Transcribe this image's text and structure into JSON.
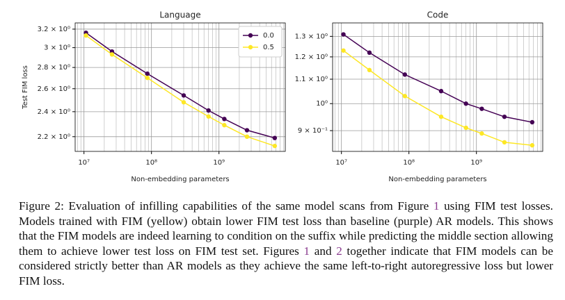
{
  "chart_data": [
    {
      "type": "line",
      "title": "Language",
      "xlabel": "Non-embedding parameters",
      "ylabel": "Test FIM loss",
      "xscale": "log",
      "yscale": "log",
      "grid": true,
      "legend": "upper right",
      "x": [
        10700000,
        26000000,
        87000000,
        300000000,
        700000000,
        1200000000,
        2600000000,
        6700000000
      ],
      "series": [
        {
          "name": "0.0",
          "color": "#440154",
          "values": [
            3.16,
            2.96,
            2.74,
            2.54,
            2.41,
            2.34,
            2.25,
            2.19
          ]
        },
        {
          "name": "0.5",
          "color": "#fde725",
          "values": [
            3.13,
            2.93,
            2.7,
            2.48,
            2.36,
            2.29,
            2.2,
            2.13
          ]
        }
      ],
      "xlim": [
        7400000,
        9600000000
      ],
      "ylim": [
        2.09,
        3.27
      ],
      "xticks": [
        {
          "value": 10000000,
          "label": "10⁷"
        },
        {
          "value": 100000000,
          "label": "10⁸"
        },
        {
          "value": 1000000000,
          "label": "10⁹"
        }
      ],
      "minor_xticks": [
        8000000,
        9000000,
        20000000,
        30000000,
        40000000,
        50000000,
        60000000,
        70000000,
        80000000,
        90000000,
        200000000,
        300000000,
        400000000,
        500000000,
        600000000,
        700000000,
        800000000,
        900000000,
        2000000000,
        3000000000,
        4000000000,
        5000000000,
        6000000000,
        7000000000,
        8000000000,
        9000000000
      ],
      "yticks": [
        {
          "value": 2.2,
          "label": "2.2 × 10⁰"
        },
        {
          "value": 2.4,
          "label": "2.4 × 10⁰"
        },
        {
          "value": 2.6,
          "label": "2.6 × 10⁰"
        },
        {
          "value": 2.8,
          "label": "2.8 × 10⁰"
        },
        {
          "value": 3,
          "label": "3 × 10⁰"
        },
        {
          "value": 3.2,
          "label": "3.2 × 10⁰"
        }
      ]
    },
    {
      "type": "line",
      "title": "Code",
      "xlabel": "Non-embedding parameters",
      "xscale": "log",
      "yscale": "log",
      "grid": true,
      "x": [
        10700000,
        26000000,
        87000000,
        300000000,
        700000000,
        1200000000,
        2600000000,
        6700000000
      ],
      "series": [
        {
          "name": "0.0",
          "color": "#440154",
          "values": [
            1.31,
            1.22,
            1.12,
            1.05,
            1.0,
            0.98,
            0.95,
            0.93
          ]
        },
        {
          "name": "0.5",
          "color": "#fde725",
          "values": [
            1.23,
            1.14,
            1.03,
            0.95,
            0.91,
            0.89,
            0.86,
            0.85
          ]
        }
      ],
      "xlim": [
        7400000,
        9600000000
      ],
      "ylim": [
        0.83,
        1.37
      ],
      "xticks": [
        {
          "value": 10000000,
          "label": "10⁷"
        },
        {
          "value": 100000000,
          "label": "10⁸"
        },
        {
          "value": 1000000000,
          "label": "10⁹"
        }
      ],
      "minor_xticks": [
        8000000,
        9000000,
        20000000,
        30000000,
        40000000,
        50000000,
        60000000,
        70000000,
        80000000,
        90000000,
        200000000,
        300000000,
        400000000,
        500000000,
        600000000,
        700000000,
        800000000,
        900000000,
        2000000000,
        3000000000,
        4000000000,
        5000000000,
        6000000000,
        7000000000,
        8000000000,
        9000000000
      ],
      "yticks": [
        {
          "value": 0.9,
          "label": "9 × 10⁻¹"
        },
        {
          "value": 1,
          "label": "10⁰"
        },
        {
          "value": 1.1,
          "label": "1.1 × 10⁰"
        },
        {
          "value": 1.2,
          "label": "1.2 × 10⁰"
        },
        {
          "value": 1.3,
          "label": "1.3 × 10⁰"
        }
      ]
    }
  ],
  "caption": [
    {
      "text": "Figure 2: Evaluation of infilling capabilities of the same model scans from Figure "
    },
    {
      "ref": "1"
    },
    {
      "text": " using FIM test losses. Models trained with FIM (yellow) obtain lower FIM test loss than baseline (purple) AR models. This shows that the FIM models are indeed learning to condition on the suffix while predicting the middle section allowing them to achieve lower test loss on FIM test set. Figures "
    },
    {
      "ref": "1"
    },
    {
      "text": " and "
    },
    {
      "ref": "2"
    },
    {
      "text": " together indicate that FIM models can be considered strictly better than AR models as they achieve the same left-to-right autoregressive loss but lower FIM loss."
    }
  ]
}
